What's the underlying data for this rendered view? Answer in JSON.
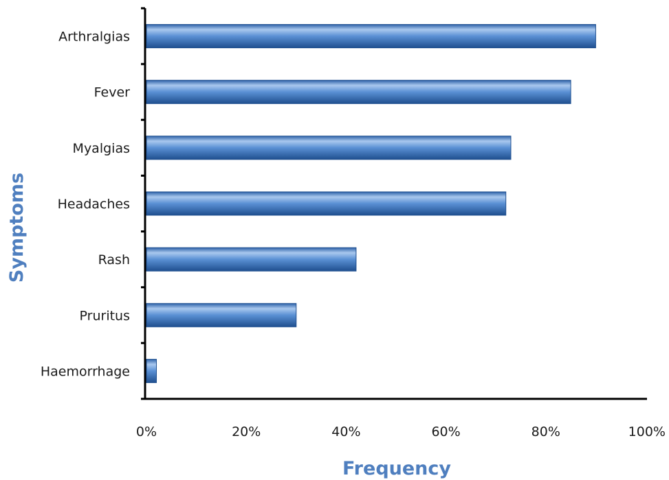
{
  "chart_data": {
    "type": "bar",
    "orientation": "horizontal",
    "categories": [
      "Arthralgias",
      "Fever",
      "Myalgias",
      "Headaches",
      "Rash",
      "Pruritus",
      "Haemorrhage"
    ],
    "values": [
      90,
      85,
      73,
      72,
      42,
      30,
      2
    ],
    "value_unit": "%",
    "xlabel": "Frequency",
    "ylabel": "Symptoms",
    "xlim": [
      0,
      100
    ],
    "xticks": [
      "0%",
      "20%",
      "40%",
      "60%",
      "80%",
      "100%"
    ],
    "grid": false,
    "legend": "none",
    "colors": {
      "bar": "#4a80c8",
      "bar_highlight": "#a9c8ee",
      "bar_shadow": "#1f4f8f",
      "axis_title": "#4f7fbf",
      "axis_line": "#000000"
    }
  }
}
